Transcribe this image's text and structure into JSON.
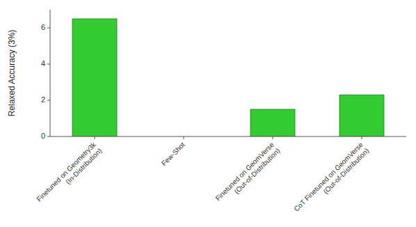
{
  "chart_data": {
    "type": "bar",
    "categories": [
      "Finetuned on Geometry3k\n(In-Distribution)",
      "Few-Shot",
      "Finetuned on GeomVerse\n(Out-of-Distribution)",
      "CoT Finetuned on GeomVerse\n(Out-of-Distribution)"
    ],
    "values": [
      6.5,
      0.0,
      1.5,
      2.3
    ],
    "color": "#33cc33",
    "ylabel": "Relaxed Accuracy (3%)",
    "ylim": [
      0,
      7
    ],
    "yticks": [
      0,
      2,
      4,
      6
    ],
    "grid": false
  }
}
